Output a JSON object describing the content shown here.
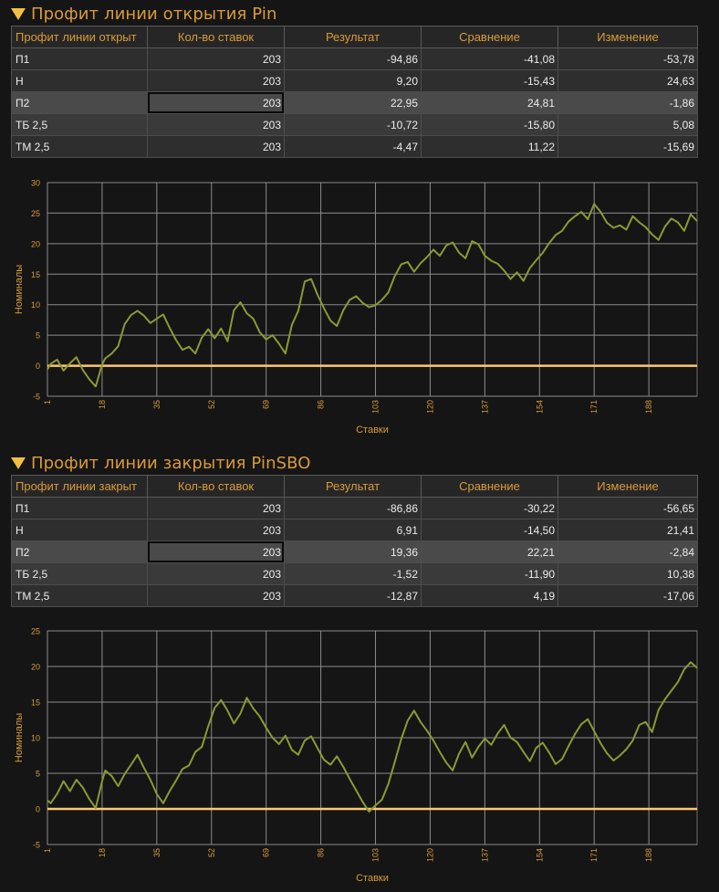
{
  "sections": [
    {
      "title": "Профит линии открытия Pin",
      "columns": [
        "Профит линии открыт",
        "Кол-во ставок",
        "Результат",
        "Сравнение",
        "Изменение"
      ],
      "rows": [
        {
          "name": "П1",
          "count": "203",
          "result": "-94,86",
          "compare": "-41,08",
          "change": "-53,78"
        },
        {
          "name": "Н",
          "count": "203",
          "result": "9,20",
          "compare": "-15,43",
          "change": "24,63"
        },
        {
          "name": "П2",
          "count": "203",
          "result": "22,95",
          "compare": "24,81",
          "change": "-1,86"
        },
        {
          "name": "ТБ 2,5",
          "count": "203",
          "result": "-10,72",
          "compare": "-15,80",
          "change": "5,08"
        },
        {
          "name": "ТМ 2,5",
          "count": "203",
          "result": "-4,47",
          "compare": "11,22",
          "change": "-15,69"
        }
      ]
    },
    {
      "title": "Профит линии закрытия PinSBO",
      "columns": [
        "Профит линии закрыт",
        "Кол-во ставок",
        "Результат",
        "Сравнение",
        "Изменение"
      ],
      "rows": [
        {
          "name": "П1",
          "count": "203",
          "result": "-86,86",
          "compare": "-30,22",
          "change": "-56,65"
        },
        {
          "name": "Н",
          "count": "203",
          "result": "6,91",
          "compare": "-14,50",
          "change": "21,41"
        },
        {
          "name": "П2",
          "count": "203",
          "result": "19,36",
          "compare": "22,21",
          "change": "-2,84"
        },
        {
          "name": "ТБ 2,5",
          "count": "203",
          "result": "-1,52",
          "compare": "-11,90",
          "change": "10,38"
        },
        {
          "name": "ТМ 2,5",
          "count": "203",
          "result": "-12,87",
          "compare": "4,19",
          "change": "-17,06"
        }
      ]
    }
  ],
  "colors": {
    "line": "#8a9a34",
    "zero_line": "#ffc870",
    "grid": "#8c8c8c",
    "axis_text": "#d99b3a",
    "header_text": "#d99b3a",
    "background": "#151515"
  },
  "chart_data": [
    {
      "type": "line",
      "xlabel": "Ставки",
      "ylabel": "Номиналы",
      "xticks": [
        1,
        18,
        35,
        52,
        69,
        86,
        103,
        120,
        137,
        154,
        171,
        188
      ],
      "xlim": [
        1,
        203
      ],
      "ylim": [
        -5,
        30
      ],
      "yticks": [
        -5,
        0,
        5,
        10,
        15,
        20,
        25,
        30
      ],
      "grid": true,
      "x": [
        1,
        2,
        4,
        6,
        8,
        10,
        12,
        14,
        16,
        18,
        19,
        21,
        23,
        25,
        27,
        29,
        31,
        33,
        35,
        37,
        39,
        41,
        43,
        45,
        47,
        49,
        51,
        53,
        55,
        57,
        59,
        61,
        63,
        65,
        67,
        69,
        71,
        73,
        75,
        77,
        79,
        81,
        83,
        85,
        87,
        89,
        91,
        93,
        95,
        97,
        99,
        101,
        103,
        105,
        107,
        109,
        111,
        113,
        115,
        117,
        119,
        121,
        123,
        125,
        127,
        129,
        131,
        133,
        135,
        137,
        139,
        141,
        143,
        145,
        147,
        149,
        151,
        153,
        155,
        157,
        159,
        161,
        163,
        165,
        167,
        169,
        171,
        173,
        175,
        177,
        179,
        181,
        183,
        185,
        187,
        189,
        191,
        193,
        195,
        197,
        199,
        201,
        203
      ],
      "y": [
        -0.6,
        0.3,
        1.0,
        -0.8,
        0.4,
        1.4,
        -0.7,
        -2.2,
        -3.4,
        0.2,
        1.2,
        2.0,
        3.2,
        6.8,
        8.3,
        9.0,
        8.2,
        7.0,
        7.7,
        8.4,
        6.2,
        4.2,
        2.6,
        3.1,
        2.0,
        4.6,
        6.0,
        4.5,
        6.1,
        4.0,
        9.1,
        10.4,
        8.6,
        7.7,
        5.5,
        4.3,
        5.0,
        3.6,
        2.0,
        6.7,
        9.0,
        13.8,
        14.2,
        11.6,
        9.4,
        7.4,
        6.5,
        9.1,
        10.8,
        11.4,
        10.3,
        9.6,
        9.9,
        10.8,
        12.0,
        14.7,
        16.6,
        17.0,
        15.4,
        16.8,
        17.8,
        19.0,
        18.0,
        19.7,
        20.2,
        18.5,
        17.6,
        20.4,
        19.9,
        18.0,
        17.2,
        16.7,
        15.6,
        14.2,
        15.3,
        13.9,
        16.0,
        17.3,
        18.5,
        20.1,
        21.4,
        22.1,
        23.6,
        24.5,
        25.2,
        24.0,
        26.5,
        25.2,
        23.4,
        22.6,
        23.0,
        22.3,
        24.5,
        23.5,
        22.7,
        21.5,
        20.6,
        22.8,
        24.1,
        23.5,
        22.1,
        24.8,
        23.7
      ]
    },
    {
      "type": "line",
      "xlabel": "Ставки",
      "ylabel": "Номиналы",
      "xticks": [
        1,
        18,
        35,
        52,
        69,
        86,
        103,
        120,
        137,
        154,
        171,
        188
      ],
      "xlim": [
        1,
        203
      ],
      "ylim": [
        -5,
        25
      ],
      "yticks": [
        -5,
        0,
        5,
        10,
        15,
        20,
        25
      ],
      "grid": true,
      "x": [
        1,
        2,
        4,
        6,
        8,
        10,
        12,
        14,
        16,
        18,
        19,
        21,
        23,
        25,
        27,
        29,
        31,
        33,
        35,
        37,
        39,
        41,
        43,
        45,
        47,
        49,
        51,
        53,
        55,
        57,
        59,
        61,
        63,
        65,
        67,
        69,
        71,
        73,
        75,
        77,
        79,
        81,
        83,
        85,
        87,
        89,
        91,
        93,
        95,
        97,
        99,
        101,
        103,
        105,
        107,
        109,
        111,
        113,
        115,
        117,
        119,
        121,
        123,
        125,
        127,
        129,
        131,
        133,
        135,
        137,
        139,
        141,
        143,
        145,
        147,
        149,
        151,
        153,
        155,
        157,
        159,
        161,
        163,
        165,
        167,
        169,
        171,
        173,
        175,
        177,
        179,
        181,
        183,
        185,
        187,
        189,
        191,
        193,
        195,
        197,
        199,
        201,
        203
      ],
      "y": [
        1.2,
        0.8,
        2.1,
        3.9,
        2.5,
        4.1,
        3.0,
        1.4,
        0.1,
        3.9,
        5.4,
        4.6,
        3.2,
        4.9,
        6.2,
        7.6,
        5.8,
        4.1,
        2.1,
        0.8,
        2.5,
        4.0,
        5.6,
        6.1,
        8.0,
        8.7,
        11.6,
        14.2,
        15.3,
        13.8,
        12.0,
        13.4,
        15.6,
        14.1,
        13.0,
        11.4,
        10.0,
        9.1,
        10.3,
        8.3,
        7.6,
        9.6,
        10.2,
        8.5,
        6.9,
        6.2,
        7.4,
        5.9,
        4.2,
        2.6,
        1.0,
        -0.4,
        0.5,
        1.3,
        3.5,
        6.6,
        9.8,
        12.4,
        13.8,
        12.2,
        11.0,
        9.6,
        8.0,
        6.5,
        5.4,
        7.8,
        9.4,
        7.2,
        8.7,
        9.9,
        9.0,
        10.6,
        11.8,
        10.0,
        9.4,
        8.0,
        6.7,
        8.6,
        9.3,
        7.9,
        6.3,
        7.0,
        8.8,
        10.5,
        11.9,
        12.6,
        10.9,
        9.2,
        7.8,
        6.8,
        7.5,
        8.4,
        9.6,
        11.8,
        12.2,
        10.8,
        13.9,
        15.4,
        16.6,
        17.8,
        19.6,
        20.6,
        19.8
      ]
    }
  ]
}
